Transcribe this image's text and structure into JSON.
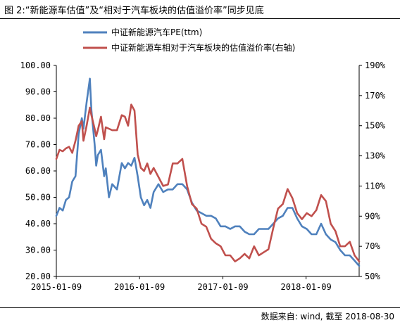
{
  "title": "图 2:“新能源车估值”及“相对于汽车板块的估值溢价率”同步见底",
  "source": "数据来自: wind, 截至 2018-08-30",
  "chart_data": {
    "type": "line",
    "title": "图 2:“新能源车估值”及“相对于汽车板块的估值溢价率”同步见底",
    "x_tick_labels": [
      "2015-01-09",
      "2016-01-09",
      "2017-01-09",
      "2018-01-09"
    ],
    "x_range": [
      "2015-01-09",
      "2018-08-30"
    ],
    "y_left": {
      "range": [
        20,
        100
      ],
      "ticks": [
        "20.00",
        "30.00",
        "40.00",
        "50.00",
        "60.00",
        "70.00",
        "80.00",
        "90.00",
        "100.00"
      ]
    },
    "y_right": {
      "range": [
        50,
        190
      ],
      "ticks": [
        "50%",
        "70%",
        "90%",
        "110%",
        "130%",
        "150%",
        "170%",
        "190%"
      ]
    },
    "grid": false,
    "legend_position": "top-center",
    "series": [
      {
        "name": "中证新能源汽车PE(ttm)",
        "axis": "left",
        "color": "#4f81bd",
        "points": [
          [
            "2015-01-09",
            43
          ],
          [
            "2015-01-23",
            46
          ],
          [
            "2015-02-06",
            45
          ],
          [
            "2015-02-20",
            49
          ],
          [
            "2015-03-06",
            50
          ],
          [
            "2015-03-20",
            56
          ],
          [
            "2015-04-03",
            58
          ],
          [
            "2015-04-17",
            74
          ],
          [
            "2015-05-01",
            80
          ],
          [
            "2015-05-08",
            76
          ],
          [
            "2015-05-22",
            86
          ],
          [
            "2015-06-05",
            95
          ],
          [
            "2015-06-12",
            83
          ],
          [
            "2015-06-26",
            70
          ],
          [
            "2015-07-03",
            62
          ],
          [
            "2015-07-10",
            66
          ],
          [
            "2015-07-24",
            68
          ],
          [
            "2015-08-07",
            58
          ],
          [
            "2015-08-14",
            61
          ],
          [
            "2015-08-28",
            50
          ],
          [
            "2015-09-11",
            55
          ],
          [
            "2015-10-02",
            53
          ],
          [
            "2015-10-23",
            63
          ],
          [
            "2015-11-06",
            61
          ],
          [
            "2015-11-20",
            63
          ],
          [
            "2015-12-04",
            62
          ],
          [
            "2015-12-18",
            65
          ],
          [
            "2016-01-01",
            58
          ],
          [
            "2016-01-15",
            50
          ],
          [
            "2016-01-29",
            47
          ],
          [
            "2016-02-12",
            49
          ],
          [
            "2016-02-26",
            46
          ],
          [
            "2016-03-11",
            52
          ],
          [
            "2016-04-01",
            55
          ],
          [
            "2016-04-22",
            52
          ],
          [
            "2016-05-13",
            53
          ],
          [
            "2016-06-03",
            53
          ],
          [
            "2016-06-24",
            55
          ],
          [
            "2016-07-15",
            55
          ],
          [
            "2016-08-05",
            53
          ],
          [
            "2016-08-26",
            48
          ],
          [
            "2016-09-16",
            45
          ],
          [
            "2016-10-07",
            44
          ],
          [
            "2016-10-28",
            43
          ],
          [
            "2016-11-18",
            43
          ],
          [
            "2016-12-09",
            42
          ],
          [
            "2016-12-30",
            39
          ],
          [
            "2017-01-20",
            39
          ],
          [
            "2017-02-10",
            38
          ],
          [
            "2017-03-03",
            39
          ],
          [
            "2017-03-24",
            39
          ],
          [
            "2017-04-14",
            37
          ],
          [
            "2017-05-05",
            36
          ],
          [
            "2017-05-26",
            36
          ],
          [
            "2017-06-16",
            38
          ],
          [
            "2017-07-07",
            38
          ],
          [
            "2017-07-28",
            38
          ],
          [
            "2017-08-18",
            40
          ],
          [
            "2017-09-08",
            42
          ],
          [
            "2017-09-29",
            43
          ],
          [
            "2017-10-20",
            46
          ],
          [
            "2017-11-10",
            46
          ],
          [
            "2017-12-01",
            42
          ],
          [
            "2017-12-22",
            39
          ],
          [
            "2018-01-12",
            38
          ],
          [
            "2018-02-02",
            36
          ],
          [
            "2018-02-23",
            36
          ],
          [
            "2018-03-16",
            40
          ],
          [
            "2018-04-06",
            36
          ],
          [
            "2018-04-27",
            34
          ],
          [
            "2018-05-18",
            33
          ],
          [
            "2018-06-08",
            30
          ],
          [
            "2018-06-29",
            28
          ],
          [
            "2018-07-20",
            28
          ],
          [
            "2018-08-10",
            26
          ],
          [
            "2018-08-30",
            24
          ]
        ]
      },
      {
        "name": "中证新能源车相对于汽车板块的估值溢价率(右轴)",
        "axis": "right",
        "color": "#c0504d",
        "points": [
          [
            "2015-01-09",
            128
          ],
          [
            "2015-01-23",
            134
          ],
          [
            "2015-02-06",
            133
          ],
          [
            "2015-02-20",
            135
          ],
          [
            "2015-03-06",
            136
          ],
          [
            "2015-03-20",
            132
          ],
          [
            "2015-04-03",
            140
          ],
          [
            "2015-04-17",
            150
          ],
          [
            "2015-05-01",
            153
          ],
          [
            "2015-05-08",
            140
          ],
          [
            "2015-05-22",
            150
          ],
          [
            "2015-06-05",
            162
          ],
          [
            "2015-06-12",
            157
          ],
          [
            "2015-06-26",
            148
          ],
          [
            "2015-07-03",
            143
          ],
          [
            "2015-07-10",
            147
          ],
          [
            "2015-07-24",
            156
          ],
          [
            "2015-08-07",
            141
          ],
          [
            "2015-08-14",
            149
          ],
          [
            "2015-08-28",
            148
          ],
          [
            "2015-09-11",
            147
          ],
          [
            "2015-10-02",
            147
          ],
          [
            "2015-10-23",
            157
          ],
          [
            "2015-11-06",
            156
          ],
          [
            "2015-11-20",
            150
          ],
          [
            "2015-12-04",
            164
          ],
          [
            "2015-12-18",
            160
          ],
          [
            "2016-01-01",
            131
          ],
          [
            "2016-01-15",
            122
          ],
          [
            "2016-01-29",
            120
          ],
          [
            "2016-02-12",
            125
          ],
          [
            "2016-02-26",
            118
          ],
          [
            "2016-03-11",
            122
          ],
          [
            "2016-04-01",
            116
          ],
          [
            "2016-04-22",
            110
          ],
          [
            "2016-05-13",
            111
          ],
          [
            "2016-06-03",
            125
          ],
          [
            "2016-06-24",
            125
          ],
          [
            "2016-07-15",
            128
          ],
          [
            "2016-08-05",
            110
          ],
          [
            "2016-08-26",
            98
          ],
          [
            "2016-09-16",
            95
          ],
          [
            "2016-10-07",
            85
          ],
          [
            "2016-10-28",
            83
          ],
          [
            "2016-11-18",
            75
          ],
          [
            "2016-12-09",
            72
          ],
          [
            "2016-12-30",
            70
          ],
          [
            "2017-01-20",
            64
          ],
          [
            "2017-02-10",
            64
          ],
          [
            "2017-03-03",
            60
          ],
          [
            "2017-03-24",
            62
          ],
          [
            "2017-04-14",
            65
          ],
          [
            "2017-05-05",
            62
          ],
          [
            "2017-05-26",
            70
          ],
          [
            "2017-06-16",
            64
          ],
          [
            "2017-07-07",
            66
          ],
          [
            "2017-07-28",
            68
          ],
          [
            "2017-08-18",
            82
          ],
          [
            "2017-09-08",
            95
          ],
          [
            "2017-09-29",
            98
          ],
          [
            "2017-10-20",
            108
          ],
          [
            "2017-11-10",
            102
          ],
          [
            "2017-12-01",
            92
          ],
          [
            "2017-12-22",
            88
          ],
          [
            "2018-01-12",
            92
          ],
          [
            "2018-02-02",
            90
          ],
          [
            "2018-02-23",
            94
          ],
          [
            "2018-03-16",
            104
          ],
          [
            "2018-04-06",
            100
          ],
          [
            "2018-04-27",
            85
          ],
          [
            "2018-05-18",
            80
          ],
          [
            "2018-06-08",
            70
          ],
          [
            "2018-06-29",
            70
          ],
          [
            "2018-07-20",
            73
          ],
          [
            "2018-08-10",
            64
          ],
          [
            "2018-08-30",
            60
          ]
        ]
      }
    ]
  }
}
